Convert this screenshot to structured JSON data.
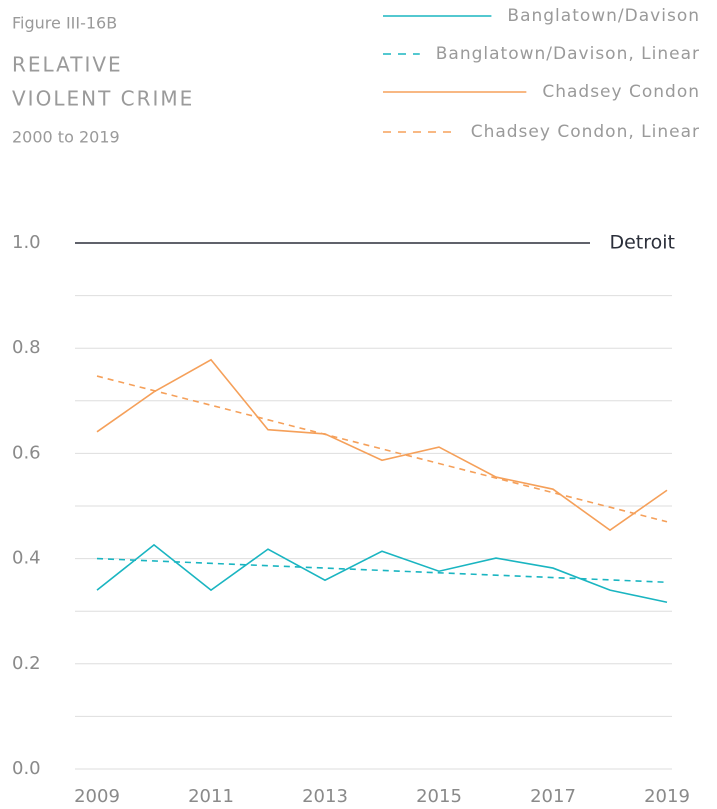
{
  "chart_data": {
    "type": "line",
    "figure_label": "Figure III-16B",
    "title_lines": [
      "RELATIVE",
      "VIOLENT CRIME"
    ],
    "subtitle": "2000 to 2019",
    "x": [
      2009,
      2010,
      2011,
      2012,
      2013,
      2014,
      2015,
      2016,
      2017,
      2018,
      2019
    ],
    "xlim": [
      2009,
      2019
    ],
    "xticks": [
      2009,
      2011,
      2013,
      2015,
      2017,
      2019
    ],
    "ylim": [
      0,
      1
    ],
    "yticks": [
      {
        "value": 0,
        "label": "0.0"
      },
      0.2,
      0.4,
      0.6,
      0.8,
      {
        "value": 1,
        "label": "1.0"
      }
    ],
    "minor_yticks": [
      0.1,
      0.3,
      0.5,
      0.7,
      0.9
    ],
    "grid": true,
    "reference": {
      "value": 1,
      "label": "Detroit",
      "color": "#2b2f3a"
    },
    "series": [
      {
        "name": "Banglatown/Davison",
        "color": "#1ab5c1",
        "dash": false,
        "values": [
          0.34,
          0.426,
          0.34,
          0.418,
          0.359,
          0.414,
          0.376,
          0.401,
          0.382,
          0.34,
          0.317
        ]
      },
      {
        "name": "Banglatown/Davison, Linear",
        "color": "#1ab5c1",
        "dash": true,
        "values": [
          0.4,
          0.3955,
          0.391,
          0.3865,
          0.382,
          0.3775,
          0.373,
          0.3685,
          0.364,
          0.3595,
          0.355
        ]
      },
      {
        "name": "Chadsey Condon",
        "color": "#f5a05a",
        "dash": false,
        "values": [
          0.641,
          0.717,
          0.778,
          0.645,
          0.637,
          0.587,
          0.612,
          0.555,
          0.532,
          0.454,
          0.53
        ]
      },
      {
        "name": "Chadsey Condon, Linear",
        "color": "#f5a05a",
        "dash": true,
        "values": [
          0.747,
          0.7193,
          0.6916,
          0.6639,
          0.6362,
          0.6085,
          0.5808,
          0.5531,
          0.5254,
          0.4977,
          0.47
        ]
      }
    ]
  }
}
